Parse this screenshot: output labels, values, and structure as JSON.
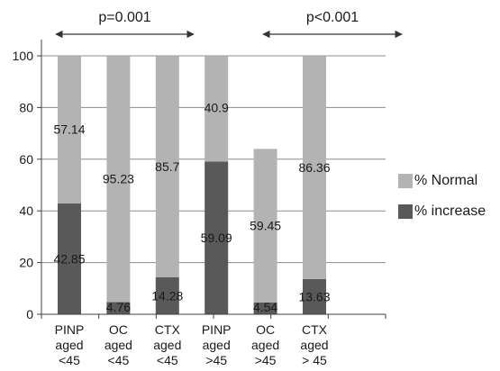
{
  "chart_data": {
    "type": "bar",
    "stacked": true,
    "categories": [
      [
        "PINP",
        "aged",
        "<45"
      ],
      [
        "OC",
        "aged",
        "<45"
      ],
      [
        "CTX",
        "aged",
        "<45"
      ],
      [
        "PINP",
        "aged",
        ">45"
      ],
      [
        "OC",
        "aged",
        ">45"
      ],
      [
        "CTX",
        "aged",
        "> 45"
      ]
    ],
    "series": [
      {
        "name": "% increase",
        "color": "#595959",
        "values": [
          42.85,
          4.76,
          14.28,
          59.09,
          4.54,
          13.63
        ]
      },
      {
        "name": "% Normal",
        "color": "#b3b3b3",
        "values": [
          57.14,
          95.23,
          85.7,
          40.9,
          59.45,
          86.36
        ]
      }
    ],
    "data_labels": {
      "% increase": [
        "42.85",
        "4.76",
        "14.28",
        "59.09",
        "4.54",
        "13.63"
      ],
      "% Normal": [
        "57.14",
        "95.23",
        "85.7",
        "40.9",
        "59.45",
        "86.36"
      ]
    },
    "ylim": [
      0,
      100
    ],
    "yticks": [
      0,
      20,
      40,
      60,
      80,
      100
    ],
    "grid": true,
    "legend_position": "right",
    "annotations": [
      {
        "text": "p=0.001",
        "from_category": 0,
        "to_category": 2
      },
      {
        "text": "p<0.001",
        "from_category": 3,
        "to_category": 5
      }
    ]
  }
}
